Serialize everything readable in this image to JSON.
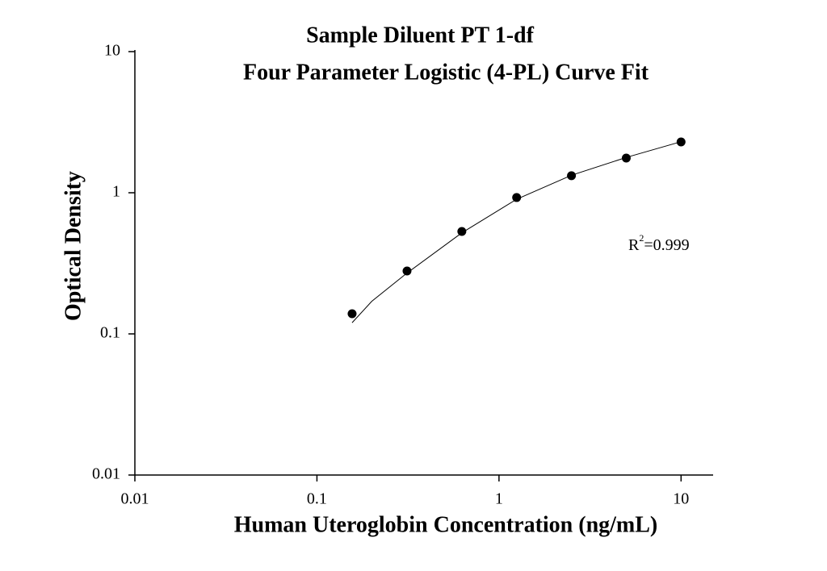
{
  "chart_data": {
    "type": "scatter",
    "title": "Sample Diluent PT 1-df",
    "subtitle": "Four Parameter Logistic (4-PL) Curve Fit",
    "x_label": "Human Uteroglobin Concentration (ng/mL)",
    "y_label": "Optical Density",
    "annotation": {
      "base": "R",
      "superscript": "2",
      "text": "=0.999"
    },
    "xscale": "log",
    "yscale": "log",
    "xlim": [
      0.01,
      15
    ],
    "ylim": [
      0.01,
      10
    ],
    "xticks": [
      0.01,
      0.1,
      1,
      10
    ],
    "yticks": [
      0.01,
      0.1,
      1,
      10
    ],
    "series": [
      {
        "marker": "circle",
        "color": "#000000",
        "x": [
          0.156,
          0.3125,
          0.625,
          1.25,
          2.5,
          5,
          10
        ],
        "values": [
          0.139,
          0.279,
          0.532,
          0.925,
          1.32,
          1.76,
          2.29
        ]
      },
      {
        "marker": "line",
        "color": "#000000",
        "x": [
          0.156,
          0.2,
          0.3125,
          0.625,
          1.25,
          2.5,
          5,
          10
        ],
        "values": [
          0.12,
          0.17,
          0.27,
          0.52,
          0.9,
          1.33,
          1.78,
          2.3
        ]
      }
    ]
  }
}
